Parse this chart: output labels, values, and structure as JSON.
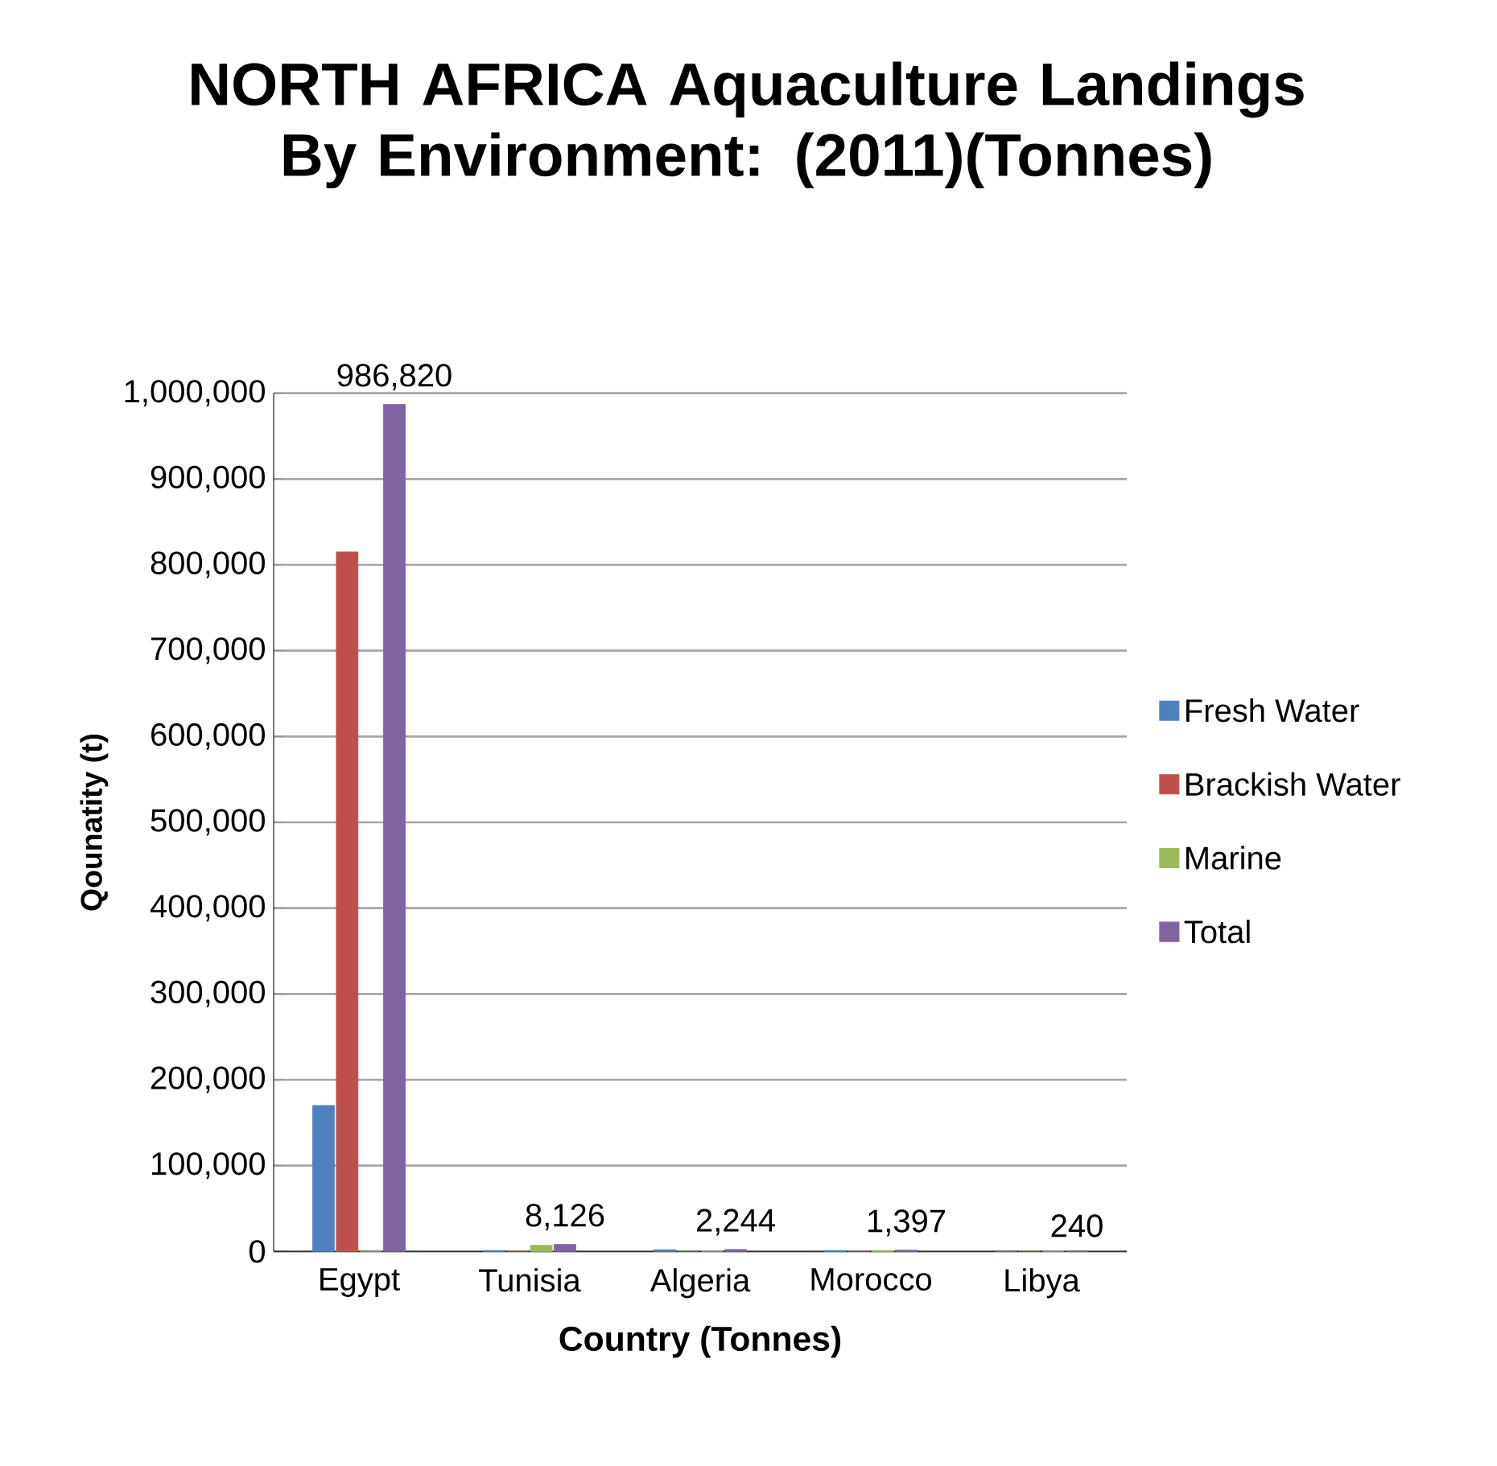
{
  "chart_data": {
    "type": "bar",
    "title": "NORTH AFRICA Aquaculture Landings By Environment: (2011)(Tonnes)",
    "xlabel": "Country (Tonnes)",
    "ylabel": "Qounatity (t)",
    "categories": [
      "Egypt",
      "Tunisia",
      "Algeria",
      "Morocco",
      "Libya"
    ],
    "series": [
      {
        "name": "Fresh Water",
        "color": "#4f81bd",
        "values": [
          170000,
          1000,
          2000,
          1000,
          0
        ]
      },
      {
        "name": "Brackish Water",
        "color": "#c0504d",
        "values": [
          815000,
          0,
          0,
          0,
          0
        ]
      },
      {
        "name": "Marine",
        "color": "#9bbb59",
        "values": [
          0,
          7000,
          0,
          1000,
          0
        ]
      },
      {
        "name": "Total",
        "color": "#8064a2",
        "values": [
          986820,
          8126,
          2244,
          1397,
          240
        ],
        "value_labels": [
          "986,820",
          "8,126",
          "2,244",
          "1,397",
          "240"
        ]
      }
    ],
    "ylim": [
      0,
      1000000
    ],
    "yticks": [
      0,
      {
        "value": 100000,
        "label": "100,000"
      },
      {
        "value": 200000,
        "label": "200,000"
      },
      {
        "value": 300000,
        "label": "300,000"
      },
      {
        "value": 400000,
        "label": "400,000"
      },
      {
        "value": 500000,
        "label": "500,000"
      },
      {
        "value": 600000,
        "label": "600,000"
      },
      {
        "value": 700000,
        "label": "700,000"
      },
      {
        "value": 800000,
        "label": "800,000"
      },
      {
        "value": 900000,
        "label": "900,000"
      },
      {
        "value": 1000000,
        "label": "1,000,000"
      }
    ],
    "grid": "y",
    "legend": "right"
  }
}
